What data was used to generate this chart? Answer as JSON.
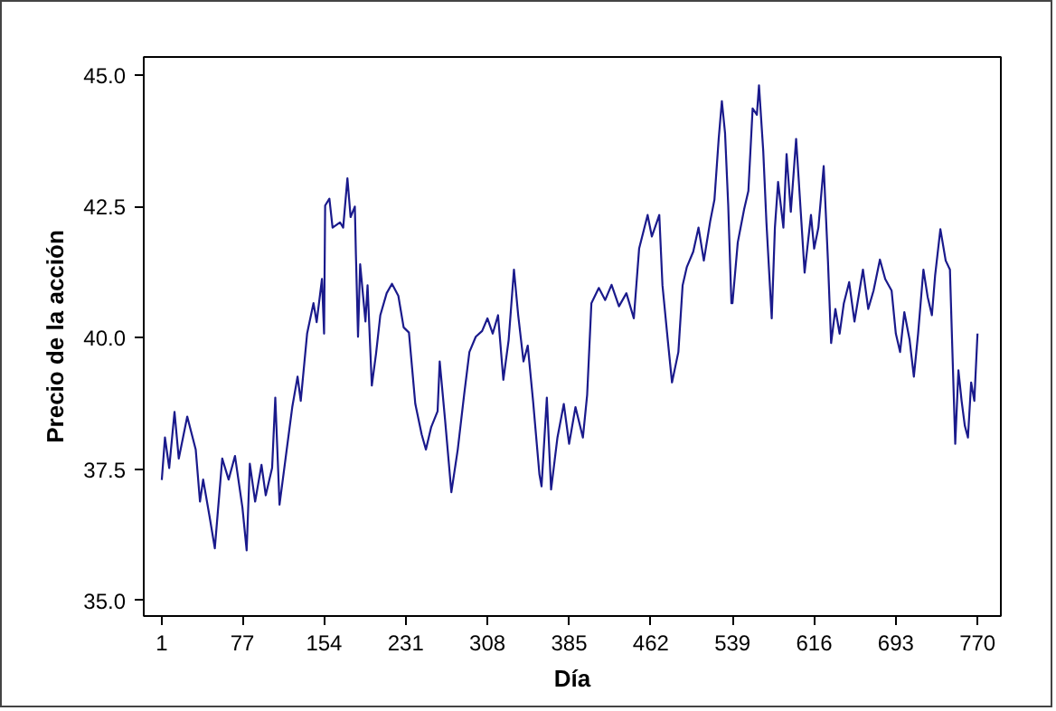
{
  "chart_data": {
    "type": "line",
    "xlabel": "Día",
    "ylabel": "Precio de la acción",
    "xlim": [
      -16,
      792
    ],
    "ylim": [
      34.7,
      45.35
    ],
    "xticks": [
      1,
      77,
      154,
      231,
      308,
      385,
      462,
      539,
      616,
      693,
      770
    ],
    "yticks": [
      {
        "value": 35,
        "label": "35.0"
      },
      {
        "value": 37.5,
        "label": "37.5"
      },
      {
        "value": 40,
        "label": "40.0"
      },
      {
        "value": 42.5,
        "label": "42.5"
      },
      {
        "value": 45,
        "label": "45.0"
      }
    ],
    "grid": false,
    "marker": "none",
    "line_style": "solid",
    "series": [
      {
        "color": "#1a1a8c",
        "x": [
          1,
          4,
          8,
          13,
          17,
          25,
          33,
          37,
          40,
          46,
          51,
          58,
          64,
          70,
          77,
          81,
          84,
          89,
          95,
          99,
          105,
          108,
          112,
          118,
          124,
          129,
          132,
          138,
          144,
          147,
          152,
          154,
          155,
          159,
          162,
          169,
          172,
          176,
          179,
          183,
          184,
          186,
          188,
          193,
          195,
          199,
          203,
          207,
          213,
          218,
          224,
          229,
          234,
          240,
          246,
          250,
          255,
          261,
          263,
          268,
          274,
          280,
          286,
          291,
          297,
          303,
          308,
          313,
          318,
          323,
          328,
          333,
          337,
          342,
          346,
          351,
          357,
          359,
          364,
          368,
          374,
          380,
          385,
          391,
          398,
          402,
          406,
          413,
          419,
          425,
          432,
          439,
          446,
          451,
          459,
          463,
          470,
          473,
          478,
          482,
          488,
          492,
          496,
          502,
          507,
          512,
          518,
          522,
          526,
          529,
          532,
          535,
          538,
          539,
          544,
          550,
          554,
          558,
          562,
          564,
          568,
          571,
          576,
          579,
          582,
          587,
          590,
          594,
          599,
          604,
          607,
          613,
          616,
          620,
          625,
          629,
          632,
          636,
          640,
          644,
          649,
          654,
          662,
          667,
          672,
          678,
          683,
          689,
          693,
          697,
          701,
          706,
          710,
          714,
          719,
          723,
          727,
          730,
          735,
          740,
          744,
          746,
          749,
          752,
          755,
          758,
          761,
          764,
          767,
          770
        ],
        "values": [
          37.29,
          38.1,
          37.52,
          38.59,
          37.7,
          38.5,
          37.87,
          36.88,
          37.3,
          36.6,
          35.99,
          37.7,
          37.3,
          37.75,
          36.77,
          35.95,
          37.6,
          36.88,
          37.58,
          37.0,
          37.52,
          38.86,
          36.82,
          37.75,
          38.68,
          39.26,
          38.8,
          40.08,
          40.66,
          40.3,
          41.12,
          40.08,
          42.52,
          42.65,
          42.1,
          42.2,
          42.1,
          43.04,
          42.3,
          42.5,
          41.59,
          40.02,
          41.4,
          40.31,
          41.0,
          39.09,
          39.7,
          40.43,
          40.85,
          41.03,
          40.8,
          40.2,
          40.1,
          38.74,
          38.16,
          37.87,
          38.3,
          38.6,
          39.55,
          38.45,
          37.06,
          37.87,
          38.91,
          39.73,
          40.02,
          40.13,
          40.37,
          40.08,
          40.43,
          39.2,
          39.96,
          41.3,
          40.43,
          39.55,
          39.85,
          38.8,
          37.4,
          37.17,
          38.86,
          37.11,
          38.1,
          38.74,
          37.98,
          38.68,
          38.1,
          38.91,
          40.66,
          40.95,
          40.72,
          41.01,
          40.6,
          40.85,
          40.37,
          41.7,
          42.34,
          41.93,
          42.34,
          41.0,
          39.96,
          39.15,
          39.73,
          41.0,
          41.35,
          41.64,
          42.1,
          41.47,
          42.22,
          42.63,
          43.79,
          44.51,
          43.9,
          42.52,
          40.66,
          40.66,
          41.82,
          42.45,
          42.8,
          44.37,
          44.25,
          44.81,
          43.56,
          42.2,
          40.37,
          42.1,
          42.97,
          42.1,
          43.5,
          42.4,
          43.79,
          42.2,
          41.24,
          42.34,
          41.7,
          42.1,
          43.27,
          41.47,
          39.9,
          40.55,
          40.08,
          40.66,
          41.06,
          40.31,
          41.3,
          40.55,
          40.9,
          41.49,
          41.12,
          40.9,
          40.08,
          39.73,
          40.49,
          39.96,
          39.26,
          40.08,
          41.3,
          40.78,
          40.43,
          41.18,
          42.07,
          41.47,
          41.3,
          39.96,
          37.98,
          39.38,
          38.8,
          38.33,
          38.1,
          39.15,
          38.8,
          40.08
        ]
      }
    ]
  }
}
